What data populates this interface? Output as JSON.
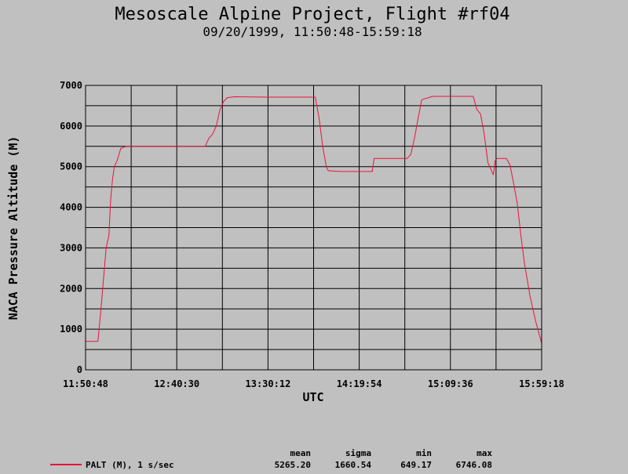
{
  "chart_data": {
    "type": "line",
    "title": "Mesoscale Alpine Project, Flight #rf04",
    "subtitle": "09/20/1999, 11:50:48-15:59:18",
    "xlabel": "UTC",
    "ylabel": "NACA Pressure Altitude (M)",
    "xlim": [
      "11:50:48",
      "15:59:18"
    ],
    "ylim": [
      0,
      7000
    ],
    "x_ticks": [
      "11:50:48",
      "12:40:30",
      "13:30:12",
      "14:19:54",
      "15:09:36",
      "15:59:18"
    ],
    "y_ticks": [
      0,
      1000,
      2000,
      3000,
      4000,
      5000,
      6000,
      7000
    ],
    "grid": true,
    "series": [
      {
        "name": "PALT (M), 1 s/sec",
        "color": "#e8143c",
        "x": [
          "11:50:48",
          "11:57:30",
          "11:59:00",
          "12:00:30",
          "12:02:00",
          "12:03:30",
          "12:04:30",
          "12:05:30",
          "12:06:30",
          "12:08:00",
          "12:10:00",
          "12:13:00",
          "12:20:00",
          "12:30:00",
          "12:40:00",
          "12:50:00",
          "12:56:00",
          "12:58:00",
          "13:00:00",
          "13:02:00",
          "13:04:00",
          "13:06:00",
          "13:08:00",
          "13:12:00",
          "13:30:00",
          "13:45:00",
          "13:50:00",
          "13:53:00",
          "13:56:00",
          "13:58:00",
          "14:00:00",
          "14:02:00",
          "14:03:00",
          "14:10:00",
          "14:20:00",
          "14:27:00",
          "14:28:00",
          "14:40:00",
          "14:45:00",
          "14:46:00",
          "14:48:00",
          "14:50:00",
          "14:52:00",
          "14:54:00",
          "15:00:00",
          "15:10:00",
          "15:22:00",
          "15:24:00",
          "15:26:00",
          "15:28:00",
          "15:30:00",
          "15:32:00",
          "15:33:00",
          "15:34:00",
          "15:35:00",
          "15:38:00",
          "15:40:00",
          "15:42:00",
          "15:44:00",
          "15:46:00",
          "15:48:00",
          "15:50:00",
          "15:53:00",
          "15:56:00",
          "15:59:18"
        ],
        "values": [
          700,
          700,
          1400,
          2200,
          3000,
          3300,
          4200,
          4700,
          5000,
          5150,
          5450,
          5500,
          5500,
          5500,
          5500,
          5500,
          5500,
          5700,
          5800,
          6000,
          6400,
          6600,
          6700,
          6720,
          6710,
          6710,
          6710,
          6710,
          6710,
          6200,
          5500,
          5000,
          4900,
          4880,
          4880,
          4880,
          5200,
          5200,
          5200,
          5200,
          5300,
          5700,
          6200,
          6650,
          6730,
          6730,
          6730,
          6400,
          6300,
          5800,
          5100,
          4900,
          4800,
          5150,
          5200,
          5200,
          5200,
          5050,
          4600,
          4100,
          3300,
          2600,
          1800,
          1200,
          649
        ]
      }
    ],
    "stats": {
      "headers": [
        "mean",
        "sigma",
        "min",
        "max"
      ],
      "values": [
        "5265.20",
        "1660.54",
        "649.17",
        "6746.08"
      ]
    }
  }
}
